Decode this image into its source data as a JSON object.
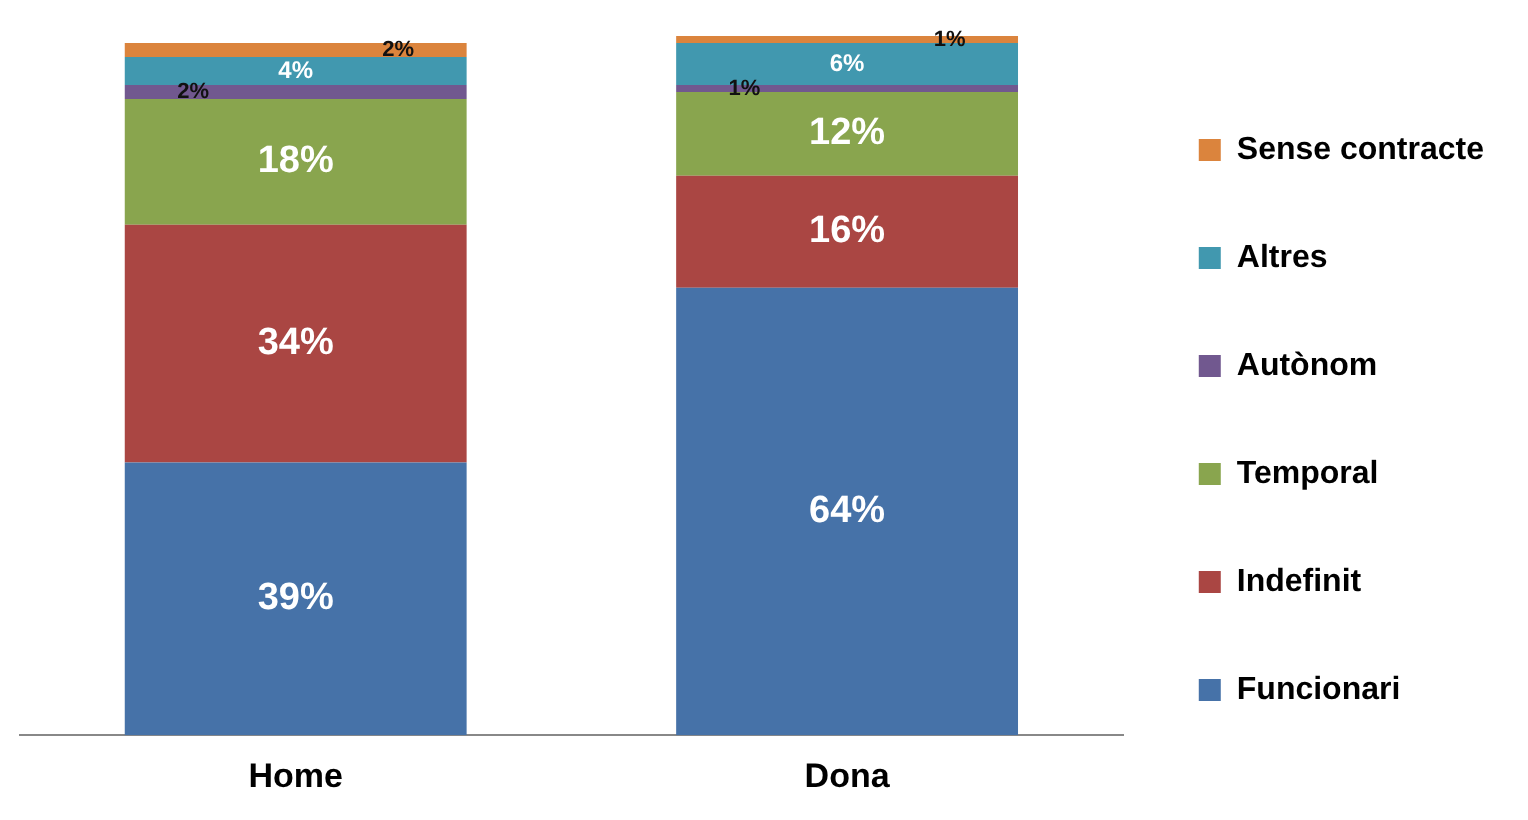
{
  "chart_data": {
    "type": "bar",
    "stacked": true,
    "categories": [
      "Home",
      "Dona"
    ],
    "legend": "right",
    "grid": false,
    "series": [
      {
        "name": "Funcionari",
        "color": "#4672a8",
        "values": [
          39,
          64
        ],
        "value_labels": [
          "39%",
          "64%"
        ]
      },
      {
        "name": "Indefinit",
        "color": "#aa4643",
        "values": [
          34,
          16
        ],
        "value_labels": [
          "34%",
          "16%"
        ]
      },
      {
        "name": "Temporal",
        "color": "#89a54e",
        "values": [
          18,
          12
        ],
        "value_labels": [
          "18%",
          "12%"
        ]
      },
      {
        "name": "Autònom",
        "color": "#71588f",
        "values": [
          2,
          1
        ],
        "value_labels": [
          "2%",
          "1%"
        ]
      },
      {
        "name": "Altres",
        "color": "#4198af",
        "values": [
          4,
          6
        ],
        "value_labels": [
          "4%",
          "6%"
        ]
      },
      {
        "name": "Sense contracte",
        "color": "#db843d",
        "values": [
          2,
          1
        ],
        "value_labels": [
          "2%",
          "1%"
        ]
      }
    ]
  }
}
